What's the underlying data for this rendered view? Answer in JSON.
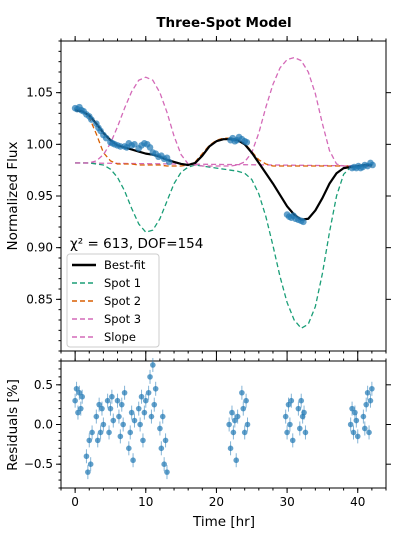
{
  "chart_data": {
    "type": "line",
    "title": "Three-Spot Model",
    "xlabel": "Time [hr]",
    "top_panel": {
      "ylabel": "Normalized Flux",
      "ylim": [
        0.8,
        1.1
      ],
      "yticks": [
        "0.85",
        "0.90",
        "0.95",
        "1.00",
        "1.05"
      ],
      "annotation": "χ² = 613, DOF=154",
      "legend_position": "lower-left",
      "series": [
        {
          "name": "Best-fit",
          "color": "#000000",
          "style": "solid",
          "x": [
            0,
            1,
            2,
            3,
            4,
            5,
            6,
            7,
            8,
            9,
            10,
            11,
            12,
            13,
            14,
            15,
            16,
            17,
            18,
            19,
            20,
            21,
            22,
            23,
            24,
            25,
            26,
            27,
            28,
            29,
            30,
            31,
            32,
            33,
            34,
            35,
            36,
            37,
            38,
            39,
            40,
            41,
            42
          ],
          "y": [
            1.033,
            1.032,
            1.028,
            1.02,
            1.011,
            1.004,
            0.999,
            0.997,
            0.995,
            0.993,
            0.991,
            0.99,
            0.988,
            0.985,
            0.983,
            0.981,
            0.98,
            0.982,
            0.989,
            0.998,
            1.003,
            1.005,
            1.005,
            1.004,
            1.0,
            0.992,
            0.982,
            0.972,
            0.962,
            0.951,
            0.94,
            0.932,
            0.927,
            0.928,
            0.936,
            0.948,
            0.962,
            0.972,
            0.977,
            0.978,
            0.979,
            0.98,
            0.98
          ]
        },
        {
          "name": "Spot 1",
          "color": "#1a9e77",
          "style": "dashed",
          "x": [
            0,
            1,
            2,
            3,
            4,
            5,
            6,
            7,
            8,
            9,
            10,
            11,
            12,
            13,
            14,
            15,
            16,
            17,
            18,
            19,
            20,
            21,
            22,
            23,
            24,
            25,
            26,
            27,
            28,
            29,
            30,
            31,
            32,
            33,
            34,
            35,
            36,
            37,
            38,
            39,
            40,
            41,
            42
          ],
          "y": [
            0.982,
            0.982,
            0.982,
            0.981,
            0.98,
            0.976,
            0.968,
            0.955,
            0.938,
            0.923,
            0.915,
            0.917,
            0.928,
            0.945,
            0.962,
            0.973,
            0.978,
            0.98,
            0.979,
            0.978,
            0.977,
            0.976,
            0.975,
            0.974,
            0.972,
            0.966,
            0.952,
            0.93,
            0.902,
            0.872,
            0.847,
            0.83,
            0.822,
            0.826,
            0.843,
            0.875,
            0.915,
            0.95,
            0.971,
            0.978,
            0.978,
            0.979,
            0.979
          ]
        },
        {
          "name": "Spot 2",
          "color": "#d95f02",
          "style": "dashed",
          "x": [
            0,
            1,
            2,
            3,
            4,
            5,
            6,
            7,
            8,
            9,
            10,
            11,
            12,
            13,
            14,
            15,
            16,
            17,
            18,
            19,
            20,
            21,
            22,
            23,
            24,
            25,
            26,
            27,
            28,
            29,
            30,
            31,
            32,
            33,
            34,
            35,
            36,
            37,
            38,
            39,
            40,
            41,
            42
          ],
          "y": [
            1.034,
            1.033,
            1.026,
            1.01,
            0.992,
            0.984,
            0.981,
            0.981,
            0.981,
            0.98,
            0.98,
            0.98,
            0.98,
            0.979,
            0.979,
            0.979,
            0.98,
            0.983,
            0.991,
            0.999,
            1.004,
            1.006,
            1.006,
            1.005,
            1.001,
            0.993,
            0.985,
            0.981,
            0.979,
            0.979,
            0.979,
            0.979,
            0.979,
            0.979,
            0.979,
            0.979,
            0.979,
            0.979,
            0.979,
            0.979,
            0.979,
            0.979,
            0.979
          ]
        },
        {
          "name": "Spot 3",
          "color": "#d46ab8",
          "style": "dashed",
          "x": [
            0,
            1,
            2,
            3,
            4,
            5,
            6,
            7,
            8,
            9,
            10,
            11,
            12,
            13,
            14,
            15,
            16,
            17,
            18,
            19,
            20,
            21,
            22,
            23,
            24,
            25,
            26,
            27,
            28,
            29,
            30,
            31,
            32,
            33,
            34,
            35,
            36,
            37,
            38,
            39,
            40,
            41,
            42
          ],
          "y": [
            0.982,
            0.982,
            0.982,
            0.984,
            0.99,
            1.001,
            1.017,
            1.035,
            1.051,
            1.062,
            1.065,
            1.062,
            1.05,
            1.031,
            1.008,
            0.99,
            0.981,
            0.98,
            0.979,
            0.979,
            0.979,
            0.979,
            0.979,
            0.98,
            0.983,
            0.992,
            1.011,
            1.036,
            1.058,
            1.074,
            1.082,
            1.084,
            1.081,
            1.07,
            1.049,
            1.02,
            0.994,
            0.981,
            0.979,
            0.979,
            0.979,
            0.979,
            0.979
          ]
        },
        {
          "name": "Slope",
          "color": "#d46ab8",
          "style": "dashed",
          "x": [
            0,
            42
          ],
          "y": [
            0.982,
            0.979
          ]
        }
      ],
      "observations": {
        "color": "#1f77b4",
        "x": [
          0.0,
          0.3,
          0.6,
          0.9,
          1.2,
          1.6,
          2.0,
          2.3,
          3.0,
          3.3,
          3.6,
          4.0,
          4.4,
          5.0,
          5.3,
          5.6,
          6.0,
          6.4,
          7.0,
          7.3,
          7.6,
          8.0,
          8.4,
          9.0,
          9.4,
          9.8,
          10.2,
          10.6,
          11.0,
          11.4,
          11.8,
          12.2,
          12.6,
          13.0,
          13.3,
          22.0,
          22.3,
          22.6,
          22.9,
          23.2,
          23.6,
          24.0,
          24.3,
          30.0,
          30.3,
          30.6,
          30.9,
          31.2,
          31.6,
          32.0,
          32.3,
          39.2,
          39.5,
          39.8,
          40.1,
          40.4,
          40.7,
          41.0,
          41.4,
          41.8,
          42.1
        ],
        "y": [
          1.035,
          1.034,
          1.036,
          1.033,
          1.032,
          1.029,
          1.027,
          1.024,
          1.02,
          1.016,
          1.013,
          1.009,
          1.006,
          1.002,
          1.001,
          1.0,
          0.999,
          0.998,
          0.998,
          0.997,
          1.001,
          0.999,
          1.0,
          0.996,
          0.999,
          1.001,
          1.0,
          0.997,
          0.992,
          0.991,
          0.988,
          0.989,
          0.986,
          0.987,
          0.983,
          1.004,
          1.006,
          1.003,
          1.004,
          1.007,
          1.005,
          1.003,
          1.002,
          0.932,
          0.93,
          0.929,
          0.931,
          0.928,
          0.927,
          0.926,
          0.925,
          0.977,
          0.978,
          0.977,
          0.979,
          0.977,
          0.978,
          0.98,
          0.979,
          0.982,
          0.98
        ]
      },
      "legend_entries": [
        "Best-fit",
        "Spot 1",
        "Spot 2",
        "Spot 3",
        "Slope"
      ]
    },
    "bottom_panel": {
      "ylabel": "Residuals [%]",
      "ylim": [
        -0.8,
        0.8
      ],
      "yticks": [
        "−0.5",
        "0.0",
        "0.5"
      ],
      "color": "#1f77b4",
      "x": [
        0.0,
        0.2,
        0.4,
        0.6,
        0.8,
        1.0,
        1.6,
        1.8,
        2.0,
        2.2,
        2.4,
        3.0,
        3.2,
        3.4,
        3.6,
        3.8,
        4.0,
        4.6,
        4.8,
        5.0,
        5.2,
        5.4,
        6.0,
        6.2,
        6.4,
        6.6,
        6.8,
        7.0,
        7.6,
        7.8,
        8.0,
        8.2,
        8.4,
        9.0,
        9.2,
        9.4,
        9.6,
        9.8,
        10.0,
        10.4,
        10.6,
        10.8,
        11.0,
        11.2,
        11.4,
        12.0,
        12.2,
        12.4,
        12.6,
        12.8,
        13.0,
        21.8,
        22.0,
        22.2,
        22.4,
        22.6,
        22.8,
        23.0,
        23.6,
        23.8,
        24.0,
        24.2,
        24.4,
        29.8,
        30.0,
        30.2,
        30.4,
        30.6,
        30.8,
        31.6,
        31.8,
        32.0,
        32.2,
        32.4,
        32.6,
        39.0,
        39.2,
        39.4,
        39.6,
        39.8,
        40.0,
        40.8,
        41.0,
        41.2,
        41.4,
        41.6,
        41.8,
        42.0
      ],
      "y": [
        0.3,
        0.45,
        0.15,
        0.4,
        0.2,
        0.35,
        -0.4,
        -0.6,
        -0.2,
        -0.5,
        -0.1,
        0.1,
        -0.2,
        0.25,
        -0.1,
        0.2,
        0.0,
        0.3,
        -0.1,
        0.2,
        0.35,
        0.05,
        0.3,
        0.1,
        -0.15,
        0.25,
        0.0,
        0.4,
        -0.3,
        -0.1,
        0.15,
        -0.45,
        0.05,
        0.2,
        0.0,
        0.35,
        -0.2,
        0.15,
        0.3,
        0.4,
        0.6,
        0.1,
        0.75,
        0.25,
        0.45,
        -0.05,
        -0.3,
        0.1,
        -0.5,
        -0.2,
        -0.6,
        0.0,
        -0.3,
        0.15,
        -0.1,
        0.05,
        -0.45,
        0.1,
        0.4,
        0.2,
        -0.1,
        0.3,
        0.0,
        0.1,
        -0.1,
        0.25,
        0.0,
        0.3,
        -0.2,
        0.2,
        -0.05,
        0.3,
        0.1,
        0.15,
        -0.1,
        0.0,
        0.2,
        -0.1,
        0.15,
        0.05,
        -0.15,
        0.1,
        -0.05,
        0.25,
        0.4,
        -0.1,
        0.3,
        0.45
      ]
    },
    "xlim": [
      -2,
      44
    ],
    "xticks": [
      "0",
      "10",
      "20",
      "30",
      "40"
    ]
  }
}
